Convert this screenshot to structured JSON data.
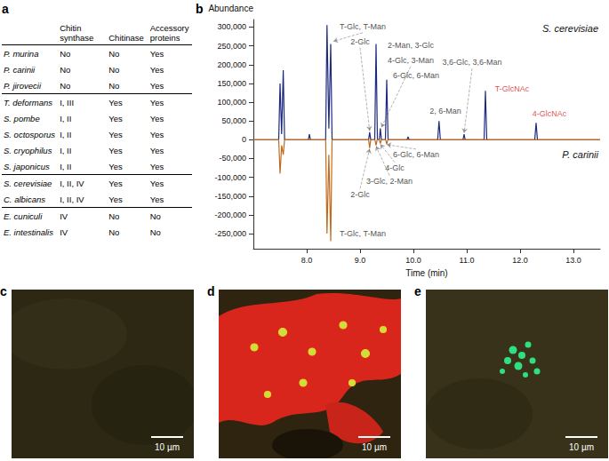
{
  "panel_a": {
    "letter": "a",
    "header": [
      "Chitin synthase",
      "Chitinase",
      "Accessory proteins"
    ],
    "groups": [
      [
        [
          "P. murina",
          "No",
          "No",
          "Yes"
        ],
        [
          "P. carinii",
          "No",
          "No",
          "Yes"
        ],
        [
          "P. jirovecii",
          "No",
          "No",
          "Yes"
        ]
      ],
      [
        [
          "T. deformans",
          "I, III",
          "Yes",
          "Yes"
        ],
        [
          "S. pombe",
          "I, II",
          "Yes",
          "Yes"
        ],
        [
          "S. octosporus",
          "I, II",
          "Yes",
          "Yes"
        ],
        [
          "S. cryophilus",
          "I, II",
          "Yes",
          "Yes"
        ],
        [
          "S. japonicus",
          "I, II",
          "Yes",
          "Yes"
        ]
      ],
      [
        [
          "S. cerevisiae",
          "I, II, IV",
          "Yes",
          "Yes"
        ],
        [
          "C. albicans",
          "I, II, IV",
          "Yes",
          "Yes"
        ]
      ],
      [
        [
          "E. cuniculi",
          "IV",
          "No",
          "No"
        ],
        [
          "E. intestinalis",
          "IV",
          "No",
          "No"
        ]
      ]
    ]
  },
  "chart_data": {
    "type": "line",
    "panel_label": "b",
    "x_label": "Time (min)",
    "y_label": "Abundance",
    "xlim": [
      7.0,
      13.5
    ],
    "xticks": [
      {
        "value": 8,
        "label": "8.0"
      },
      {
        "value": 9,
        "label": "9.0"
      },
      {
        "value": 10,
        "label": "10.0"
      },
      {
        "value": 11,
        "label": "11.0"
      },
      {
        "value": 12,
        "label": "12.0"
      },
      {
        "value": 13,
        "label": "13.0"
      }
    ],
    "ylim": [
      -290000,
      320000
    ],
    "yticks": [
      {
        "value": -250000,
        "label": "-250,000"
      },
      {
        "value": -200000,
        "label": "-200,000"
      },
      {
        "value": -150000,
        "label": "-150,000"
      },
      {
        "value": -100000,
        "label": "-100,000"
      },
      {
        "value": -50000,
        "label": "-50,000"
      },
      0,
      {
        "value": 50000,
        "label": "50,000"
      },
      {
        "value": 100000,
        "label": "100,000"
      },
      {
        "value": 150000,
        "label": "150,000"
      },
      {
        "value": 200000,
        "label": "200,000"
      },
      {
        "value": 250000,
        "label": "250,000"
      },
      {
        "value": 300000,
        "label": "300,000"
      }
    ],
    "series": [
      {
        "name": "S. cerevisiae",
        "color": "#1c2a80",
        "x": [
          7.0,
          7.475,
          7.5,
          7.53,
          7.56,
          7.585,
          8.03,
          8.05,
          8.07,
          8.355,
          8.38,
          8.415,
          8.45,
          8.475,
          9.16,
          9.18,
          9.2,
          9.275,
          9.3,
          9.325,
          9.36,
          9.38,
          9.4,
          9.475,
          9.5,
          9.525,
          9.88,
          9.9,
          9.92,
          10.455,
          10.48,
          10.505,
          10.93,
          10.95,
          10.97,
          11.325,
          11.35,
          11.375,
          12.275,
          12.3,
          12.325,
          13.5
        ],
        "values": [
          0,
          0,
          150000,
          15000,
          185000,
          0,
          0,
          15000,
          0,
          0,
          305000,
          30000,
          255000,
          0,
          0,
          20000,
          0,
          0,
          255000,
          0,
          0,
          30000,
          0,
          0,
          160000,
          0,
          0,
          8000,
          0,
          0,
          50000,
          0,
          0,
          15000,
          0,
          0,
          130000,
          0,
          0,
          45000,
          0,
          0
        ]
      },
      {
        "name": "P. carinii",
        "color": "#c06a1c",
        "x": [
          7.0,
          7.475,
          7.5,
          7.53,
          7.56,
          7.585,
          8.355,
          8.38,
          8.415,
          8.45,
          8.475,
          9.16,
          9.18,
          9.2,
          9.28,
          9.3,
          9.32,
          9.36,
          9.38,
          9.4,
          9.48,
          9.5,
          9.52,
          13.5
        ],
        "values": [
          0,
          0,
          -90000,
          -15000,
          -40000,
          0,
          0,
          -250000,
          -40000,
          -270000,
          0,
          0,
          -22000,
          0,
          0,
          -15000,
          0,
          0,
          -10000,
          0,
          0,
          -12000,
          0,
          0
        ]
      }
    ],
    "annotations": [
      {
        "text": "T-Glc, T-Man",
        "x": 9.05,
        "y": 285000,
        "to": [
          8.5,
          262000
        ]
      },
      {
        "text": "2-Glc",
        "x": 9.0,
        "y": 245000,
        "to": [
          9.18,
          24000
        ]
      },
      {
        "text": "2-Man, 3-Glc",
        "x": 9.95,
        "y": 235000
      },
      {
        "text": "4-Glc, 3-Man",
        "x": 9.95,
        "y": 195000,
        "to": [
          9.4,
          33000
        ]
      },
      {
        "text": "6-Glc, 6-Man",
        "x": 10.05,
        "y": 155000
      },
      {
        "text": "2, 6-Man",
        "x": 10.6,
        "y": 60000
      },
      {
        "text": "3,6-Glc, 3,6-Man",
        "x": 11.1,
        "y": 190000,
        "to": [
          10.95,
          18000
        ]
      },
      {
        "text": "T-GlcNAc",
        "x": 11.85,
        "y": 120000,
        "color": "#e02020"
      },
      {
        "text": "4-GlcNAc",
        "x": 12.55,
        "y": 55000,
        "color": "#e02020"
      },
      {
        "text": "T-Glc, T-Man",
        "x": 9.05,
        "y": -235000
      },
      {
        "text": "2-Glc",
        "x": 9.0,
        "y": -130000,
        "to": [
          9.18,
          -24000
        ]
      },
      {
        "text": "3-Glc, 2-Man",
        "x": 9.55,
        "y": -95000,
        "to": [
          9.3,
          -17000
        ]
      },
      {
        "text": "4-Glc",
        "x": 9.65,
        "y": -60000,
        "to": [
          9.38,
          -12000
        ]
      },
      {
        "text": "6-Glc, 6-Man",
        "x": 10.05,
        "y": -25000,
        "to": [
          9.5,
          -13000
        ]
      }
    ]
  },
  "micrographs": [
    {
      "letter": "c",
      "scale_bar": "10 µm"
    },
    {
      "letter": "d",
      "scale_bar": "10 µm"
    },
    {
      "letter": "e",
      "scale_bar": "10 µm"
    }
  ]
}
